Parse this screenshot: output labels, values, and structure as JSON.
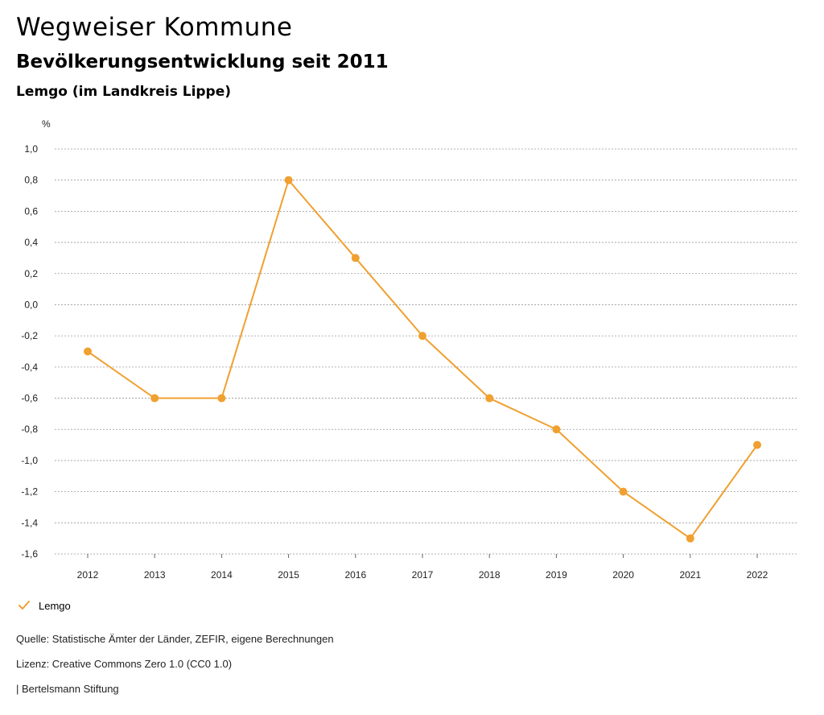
{
  "header": {
    "title": "Wegweiser Kommune",
    "subtitle": "Bevölkerungsentwicklung seit 2011",
    "region": "Lemgo (im Landkreis Lippe)"
  },
  "chart_data": {
    "type": "line",
    "title": "Bevölkerungsentwicklung seit 2011",
    "xlabel": "",
    "ylabel": "%",
    "x": [
      "2012",
      "2013",
      "2014",
      "2015",
      "2016",
      "2017",
      "2018",
      "2019",
      "2020",
      "2021",
      "2022"
    ],
    "series": [
      {
        "name": "Lemgo",
        "color": "#f0a030",
        "values": [
          -0.3,
          -0.6,
          -0.6,
          0.8,
          0.3,
          -0.2,
          -0.6,
          -0.8,
          -1.2,
          -1.5,
          -0.9
        ]
      }
    ],
    "ylim": [
      -1.6,
      1.0
    ],
    "yticks": [
      1.0,
      0.8,
      0.6,
      0.4,
      0.2,
      0.0,
      -0.2,
      -0.4,
      -0.6,
      -0.8,
      -1.0,
      -1.2,
      -1.4,
      -1.6
    ],
    "ytick_labels": [
      "1,0",
      "0,8",
      "0,6",
      "0,4",
      "0,2",
      "0,0",
      "-0,2",
      "-0,4",
      "-0,6",
      "-0,8",
      "-1,0",
      "-1,2",
      "-1,4",
      "-1,6"
    ],
    "grid": true,
    "legend_position": "bottom-left"
  },
  "legend": {
    "label": "Lemgo",
    "icon": "checkmark-icon"
  },
  "footer": {
    "source": "Quelle: Statistische Ämter der Länder, ZEFIR, eigene Berechnungen",
    "license": "Lizenz: Creative Commons Zero 1.0 (CC0 1.0)",
    "organization": "| Bertelsmann Stiftung"
  }
}
